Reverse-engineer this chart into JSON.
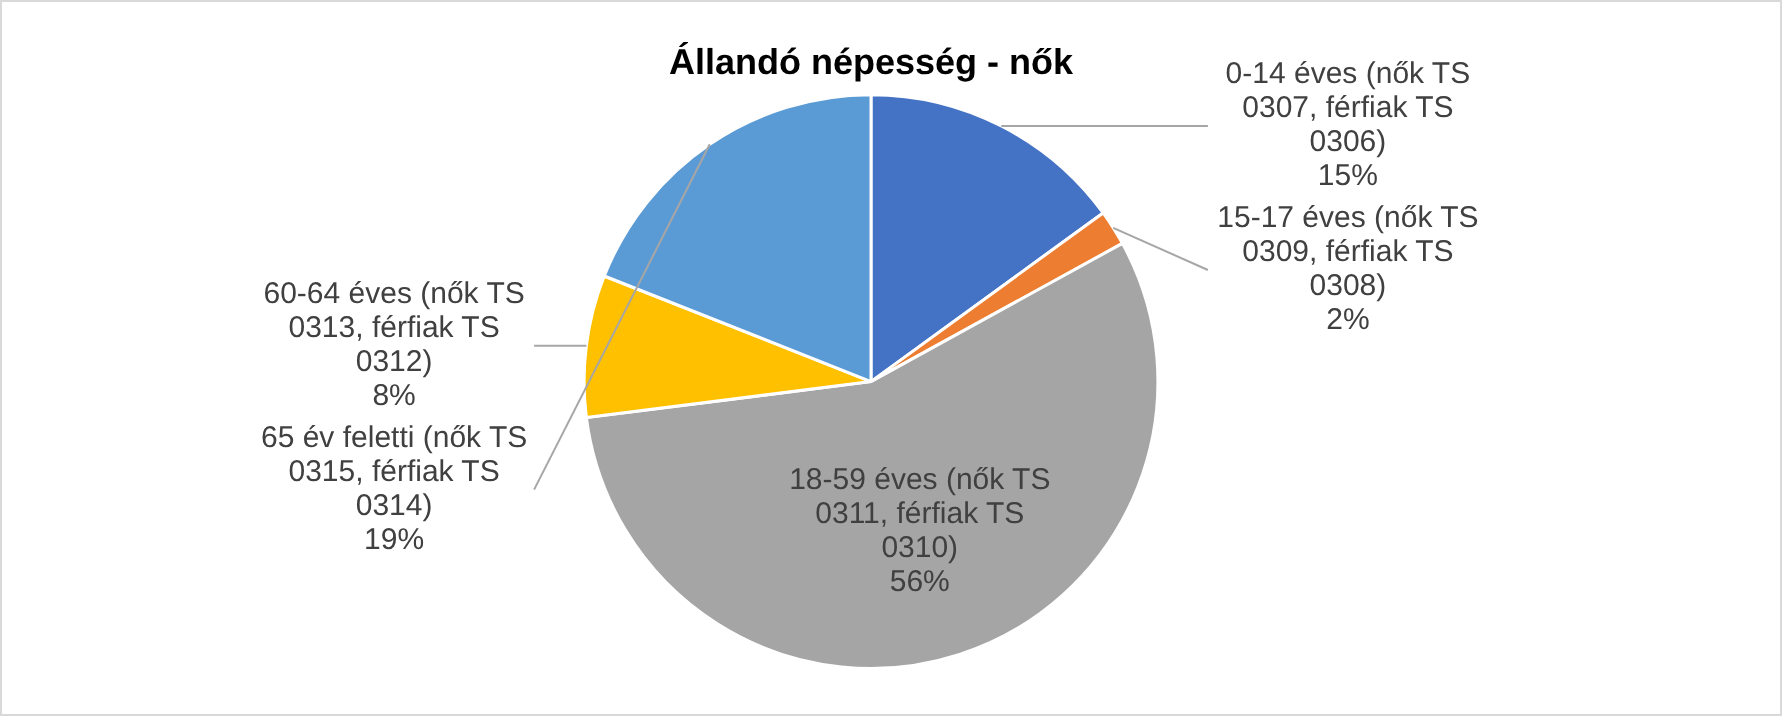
{
  "chart_data": {
    "type": "pie",
    "title": "Állandó népesség - nők",
    "categories": [
      "0-14 éves (nők TS 0307, férfiak TS 0306)",
      "15-17 éves (nők TS 0309, férfiak TS 0308)",
      "18-59 éves (nők TS 0311, férfiak TS 0310)",
      "60-64 éves (nők TS 0313, férfiak TS 0312)",
      "65 év feletti (nők TS 0315, férfiak TS 0314)"
    ],
    "values": [
      15,
      2,
      56,
      8,
      19
    ],
    "value_labels": [
      "15%",
      "2%",
      "56%",
      "8%",
      "19%"
    ],
    "colors": [
      "#4472c4",
      "#ed7d31",
      "#a5a5a5",
      "#ffc000",
      "#5b9bd5"
    ],
    "legend": false
  }
}
